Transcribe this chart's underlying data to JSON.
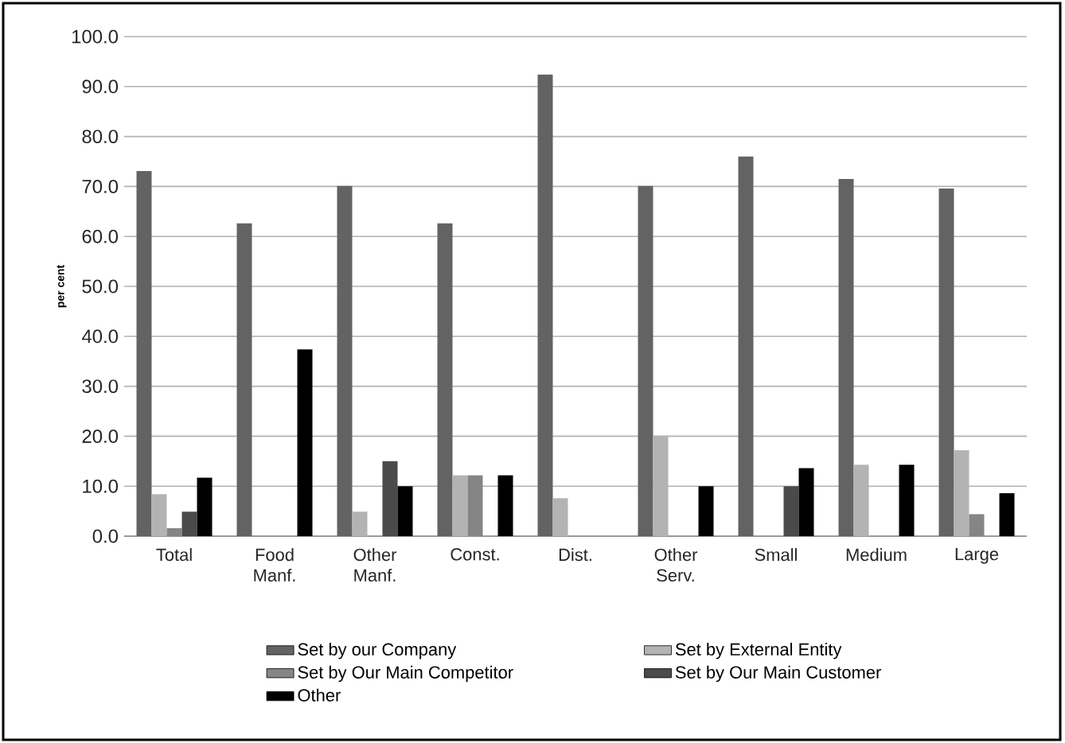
{
  "chart_data": {
    "type": "bar",
    "ylabel": "per cent",
    "categories": [
      "Total",
      "Food Manf.",
      "Other Manf.",
      "Const.",
      "Dist.",
      "Other Serv.",
      "Small",
      "Medium",
      "Large"
    ],
    "series": [
      {
        "name": "Set by our Company",
        "color": "#636363",
        "values": [
          73.1,
          62.6,
          70.1,
          62.6,
          92.4,
          70.1,
          76.0,
          71.5,
          69.6
        ]
      },
      {
        "name": "Set by External Entity",
        "color": "#b3b3b3",
        "values": [
          8.4,
          null,
          4.9,
          12.2,
          7.6,
          20.1,
          null,
          14.3,
          17.2
        ]
      },
      {
        "name": "Set by Our Main Competitor",
        "color": "#858585",
        "values": [
          1.6,
          null,
          null,
          12.2,
          null,
          null,
          null,
          null,
          4.4
        ]
      },
      {
        "name": "Set by Our Main Customer",
        "color": "#4a4a4a",
        "values": [
          4.9,
          null,
          15.0,
          null,
          null,
          null,
          10.0,
          null,
          null
        ]
      },
      {
        "name": "Other",
        "color": "#000000",
        "values": [
          11.7,
          37.4,
          10.0,
          12.2,
          null,
          10.0,
          13.6,
          14.3,
          8.6
        ]
      }
    ],
    "ylim": [
      0,
      100
    ],
    "yticks": [
      {
        "value": 0,
        "label": "0.0"
      },
      {
        "value": 10,
        "label": "10.0"
      },
      {
        "value": 20,
        "label": "20.0"
      },
      {
        "value": 30,
        "label": "30.0"
      },
      {
        "value": 40,
        "label": "40.0"
      },
      {
        "value": 50,
        "label": "50.0"
      },
      {
        "value": 60,
        "label": "60.0"
      },
      {
        "value": 70,
        "label": "70.0"
      },
      {
        "value": 80,
        "label": "80.0"
      },
      {
        "value": 90,
        "label": "90.0"
      },
      {
        "value": 100,
        "label": "100.0"
      }
    ],
    "grid": "y",
    "legend": "bottom"
  }
}
